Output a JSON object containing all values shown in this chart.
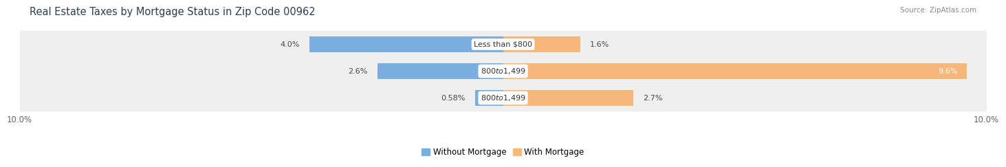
{
  "title": "Real Estate Taxes by Mortgage Status in Zip Code 00962",
  "source": "Source: ZipAtlas.com",
  "rows": [
    {
      "label": "Less than $800",
      "without_mortgage": 4.0,
      "with_mortgage": 1.6
    },
    {
      "label": "$800 to $1,499",
      "without_mortgage": 2.6,
      "with_mortgage": 9.6
    },
    {
      "label": "$800 to $1,499",
      "without_mortgage": 0.58,
      "with_mortgage": 2.7
    }
  ],
  "x_max": 10.0,
  "x_min": -10.0,
  "color_without": "#7AADE0",
  "color_with": "#F5B87A",
  "color_label_bg": "#FFFFFF",
  "bar_height": 0.58,
  "row_bg_color": "#EFEFEF",
  "row_bg_alpha": 1.0,
  "title_fontsize": 10.5,
  "axis_fontsize": 8.5,
  "label_fontsize": 8.0,
  "value_fontsize": 8.0,
  "legend_fontsize": 8.5,
  "x_tick_left": "10.0%",
  "x_tick_right": "10.0%"
}
